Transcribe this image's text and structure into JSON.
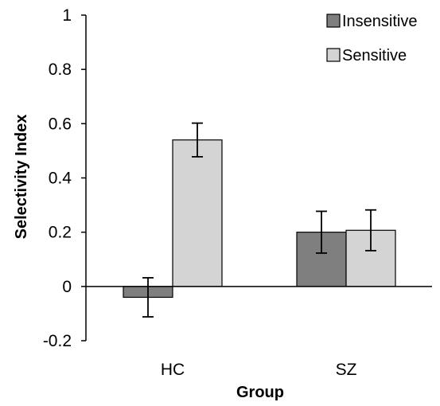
{
  "chart_data": {
    "type": "bar",
    "title": "",
    "xlabel": "Group",
    "ylabel": "Selectivity Index",
    "categories": [
      "HC",
      "SZ"
    ],
    "ylim": [
      -0.2,
      1
    ],
    "yticks": [
      "-0.2",
      "0",
      "0.2",
      "0.4",
      "0.6",
      "0.8",
      "1"
    ],
    "grid": false,
    "legend_position": "top-right",
    "series": [
      {
        "name": "Insensitive",
        "color": "#7f7f7f",
        "values": [
          -0.04,
          0.2
        ],
        "errors": [
          0.072,
          0.077
        ]
      },
      {
        "name": "Sensitive",
        "color": "#d4d4d4",
        "values": [
          0.54,
          0.207
        ],
        "errors": [
          0.062,
          0.075
        ]
      }
    ]
  }
}
